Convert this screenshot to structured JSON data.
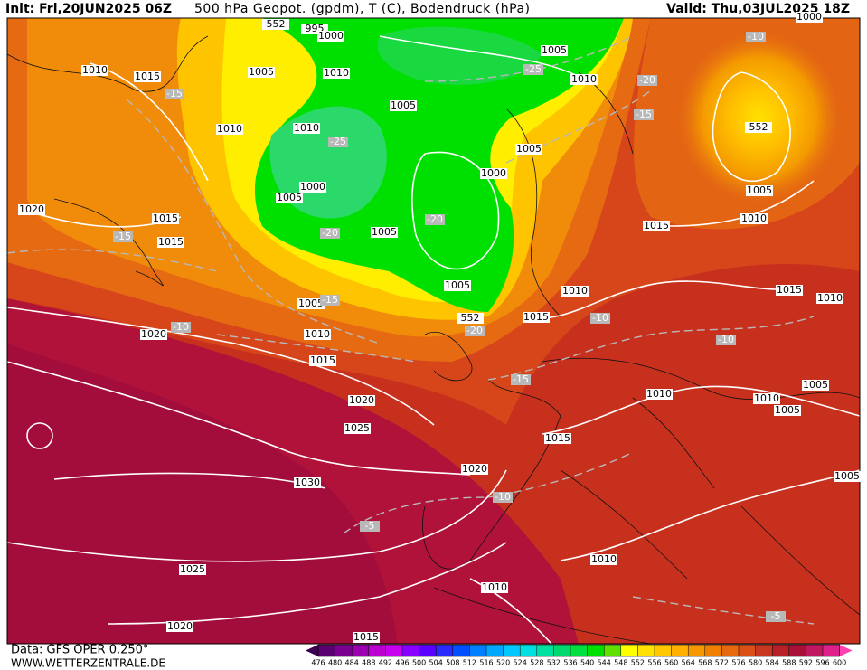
{
  "header": {
    "init": "Init: Fri,20JUN2025 06Z",
    "title": "500 hPa Geopot. (gpdm), T (C), Bodendruck (hPa)",
    "valid": "Valid: Thu,03JUL2025 18Z"
  },
  "footer": {
    "data": "Data: GFS OPER 0.250°",
    "url": "WWW.WETTERZENTRALE.DE"
  },
  "colorbar": {
    "ticks": [
      476,
      480,
      484,
      488,
      492,
      496,
      500,
      504,
      508,
      512,
      516,
      520,
      524,
      528,
      532,
      536,
      540,
      544,
      548,
      552,
      556,
      560,
      564,
      568,
      572,
      576,
      580,
      584,
      588,
      592,
      596,
      600
    ]
  },
  "pressure_labels": [
    "1010",
    "1015",
    "1005",
    "552",
    "995",
    "1000",
    "1010",
    "1005",
    "1010",
    "1005",
    "1010",
    "1010",
    "1005",
    "1000",
    "1000",
    "1005",
    "1005",
    "1020",
    "1015",
    "1015",
    "1015",
    "1005",
    "1010",
    "1005",
    "1010",
    "1005",
    "552",
    "1015",
    "1010",
    "1020",
    "1015",
    "1020",
    "1025",
    "1010",
    "1010",
    "1005",
    "1005",
    "1015",
    "1010",
    "1015",
    "1020",
    "1030",
    "1005",
    "1010",
    "1010",
    "1025",
    "1020",
    "1015",
    "552",
    "1000"
  ],
  "temperature_labels": [
    "-15",
    "-10",
    "-25",
    "-20",
    "-15",
    "-25",
    "-20",
    "-20",
    "-15",
    "-10",
    "-15",
    "-20",
    "-15",
    "-10",
    "-10",
    "-10",
    "-5",
    "-5"
  ]
}
